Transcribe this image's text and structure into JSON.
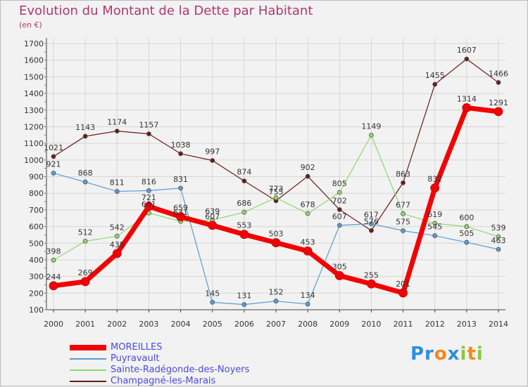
{
  "title": "Evolution du Montant de la Dette par Habitant",
  "subtitle": "(en €)",
  "logo": "Proxiti",
  "chart_data": {
    "type": "line",
    "x": [
      "2000",
      "2001",
      "2002",
      "2003",
      "2004",
      "2005",
      "2006",
      "2007",
      "2008",
      "2009",
      "2010",
      "2011",
      "2012",
      "2013",
      "2014"
    ],
    "ylim": [
      100,
      1700
    ],
    "yticks": [
      100,
      200,
      300,
      400,
      500,
      600,
      700,
      800,
      900,
      1000,
      1100,
      1200,
      1300,
      1400,
      1500,
      1600,
      1700
    ],
    "grid": true,
    "legend_position": "bottom-left",
    "series": [
      {
        "name": "Champagné-les-Marais",
        "color": "#6b1a1a",
        "width": 1.2,
        "values": [
          1021,
          1143,
          1174,
          1157,
          1038,
          997,
          874,
          755,
          902,
          702,
          576,
          863,
          1455,
          1607,
          1466
        ],
        "labels": [
          "1021",
          "1143",
          "1174",
          "1157",
          "1038",
          "997",
          "874",
          "755",
          "902",
          "702",
          "576",
          "863",
          "1455",
          "1607",
          "1466"
        ]
      },
      {
        "name": "Sainte-Radégonde-des-Noyers",
        "color": "#8fd86b",
        "width": 1.2,
        "values": [
          398,
          512,
          542,
          681,
          631,
          639,
          686,
          773,
          678,
          805,
          1149,
          677,
          619,
          600,
          539
        ],
        "labels": [
          "398",
          "512",
          "542",
          "681",
          "631",
          "639",
          "686",
          "773",
          "678",
          "805",
          "1149",
          "677",
          "619",
          "600",
          "539"
        ]
      },
      {
        "name": "Puyravault",
        "color": "#5b9bd5",
        "width": 1.2,
        "values": [
          921,
          868,
          811,
          816,
          831,
          145,
          131,
          152,
          134,
          607,
          617,
          575,
          545,
          505,
          463
        ],
        "labels": [
          "921",
          "868",
          "811",
          "816",
          "831",
          "145",
          "131",
          "152",
          "134",
          "607",
          "617",
          "575",
          "545",
          "505",
          "463"
        ]
      },
      {
        "name": "MOREILLES",
        "color": "#f20000",
        "width": 7,
        "values": [
          244,
          269,
          438,
          721,
          659,
          607,
          553,
          503,
          453,
          305,
          255,
          201,
          832,
          1314,
          1291
        ],
        "labels": [
          "244",
          "269",
          "438",
          "721",
          "659",
          "607",
          "553",
          "503",
          "453",
          "305",
          "255",
          "201",
          "832",
          "1314",
          "1291"
        ]
      }
    ],
    "legend_order": [
      "MOREILLES",
      "Puyravault",
      "Sainte-Radégonde-des-Noyers",
      "Champagné-les-Marais"
    ]
  }
}
